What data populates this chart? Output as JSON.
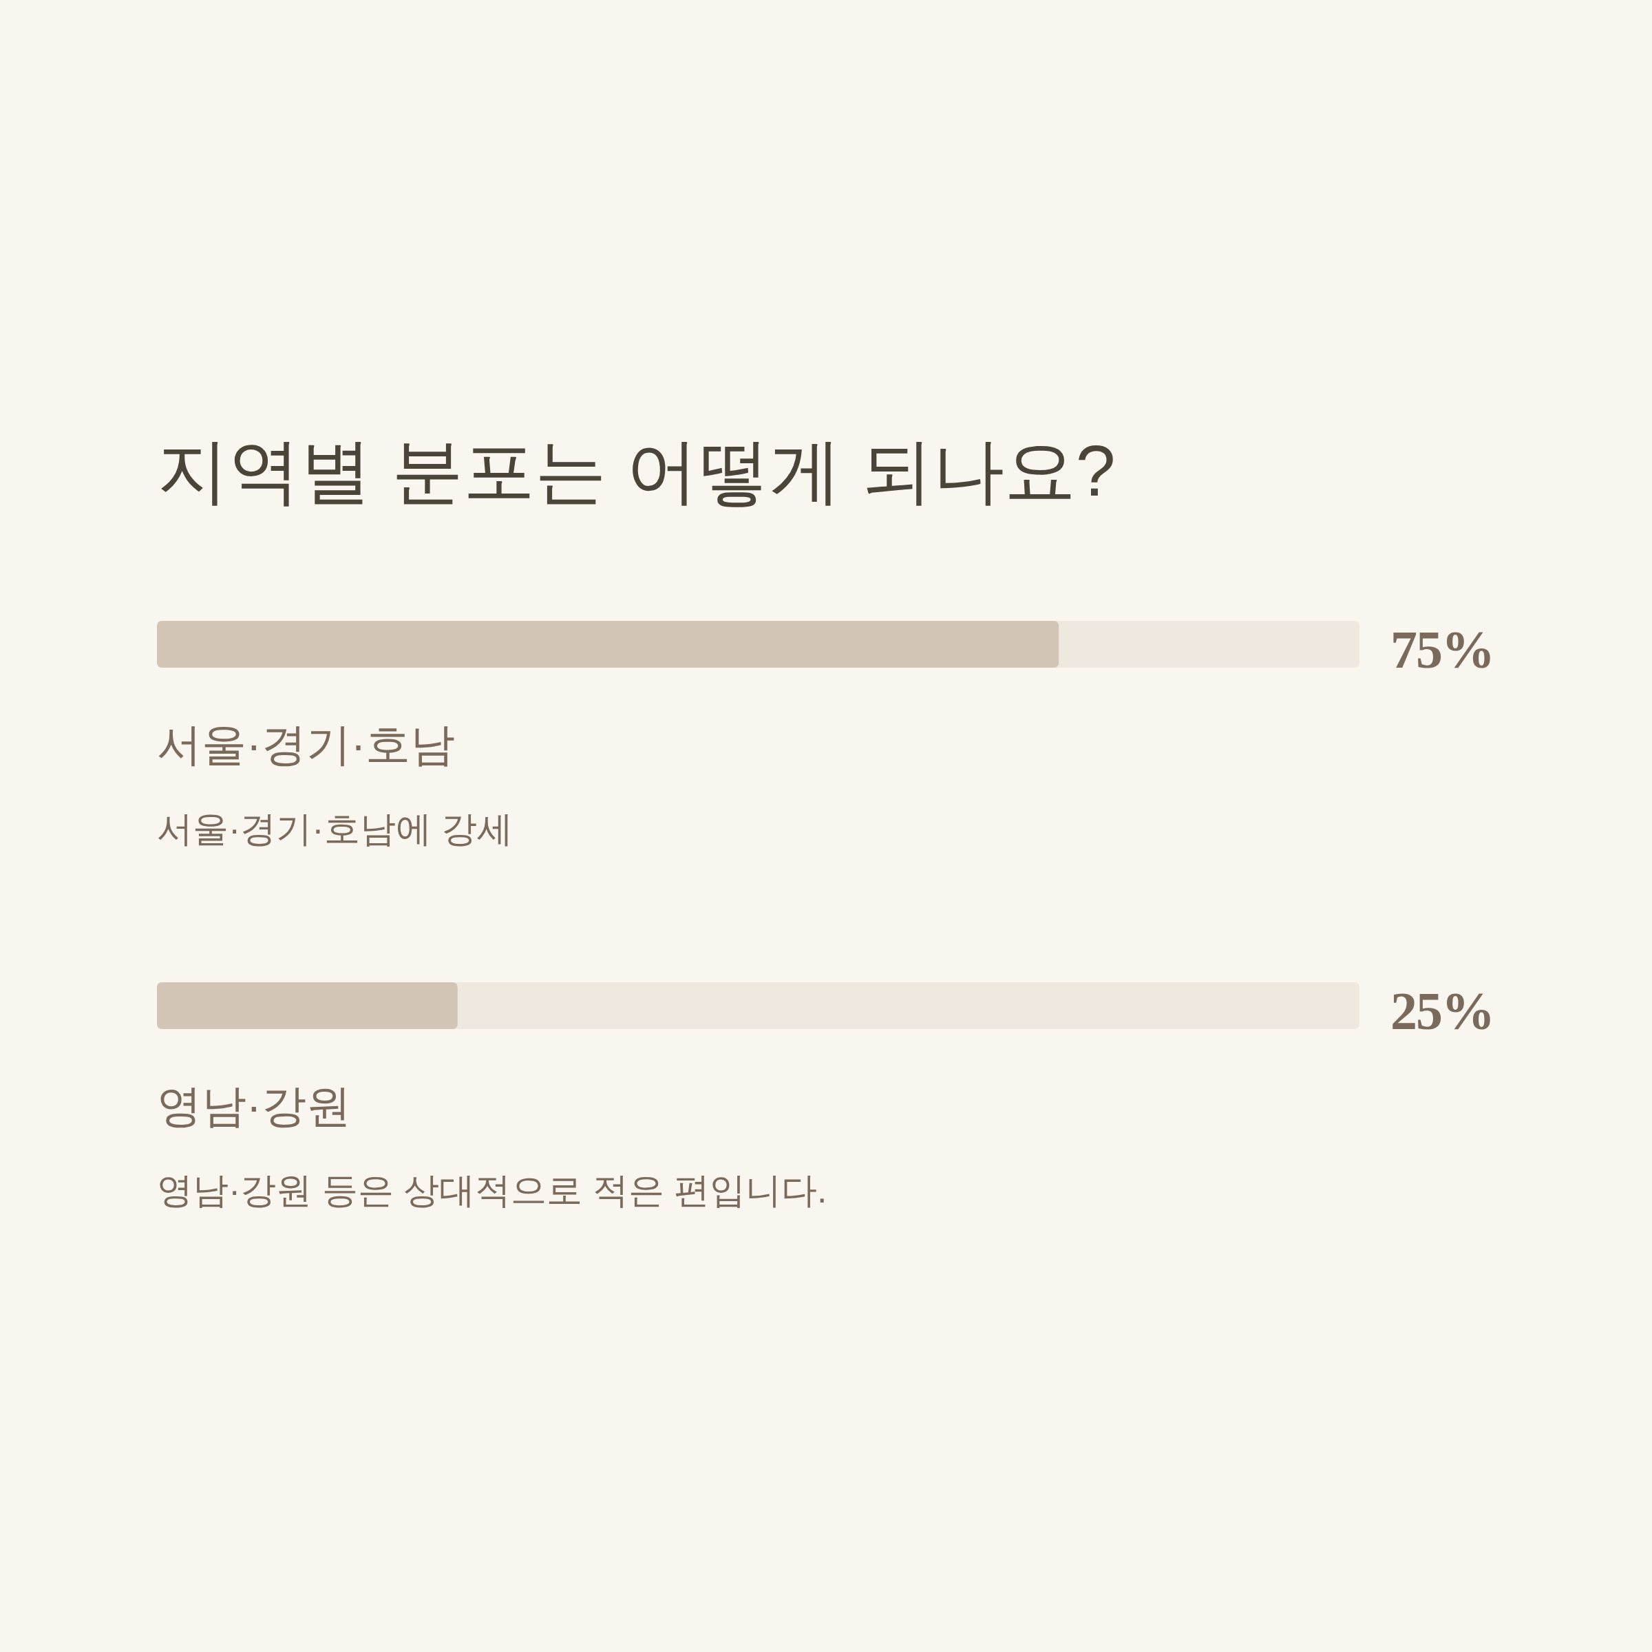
{
  "chart_data": {
    "type": "bar",
    "orientation": "horizontal",
    "title": "지역별 분포는 어떻게 되나요?",
    "categories": [
      "서울·경기·호남",
      "영남·강원"
    ],
    "values": [
      75,
      25
    ],
    "value_labels": [
      "75%",
      "25%"
    ],
    "color": "#d3c5b5",
    "xlim": [
      0,
      100
    ],
    "annotations": [
      "서울·경기·호남에 강세",
      "영남·강원 등은 상대적으로 적은 편입니다."
    ]
  }
}
